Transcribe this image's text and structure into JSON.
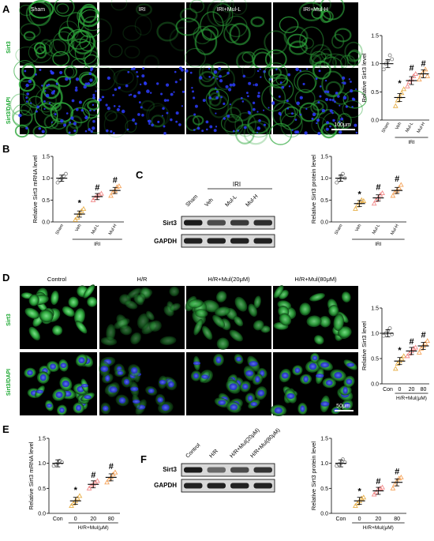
{
  "panel_letters": [
    "A",
    "B",
    "C",
    "D",
    "E",
    "F"
  ],
  "panel_a": {
    "col_titles": [
      "Sham",
      "IRI",
      "IRI+Mul-L",
      "IRI+Mul-H"
    ],
    "row_labels": [
      "Sirt3",
      "Sirt3/DAPI"
    ],
    "scale_bar": "100μm"
  },
  "panel_c": {
    "group_label": "IRI",
    "lanes": [
      "Sham",
      "Veh",
      "Mul-L",
      "Mul-H"
    ],
    "bands": [
      "Sirt3",
      "GAPDH"
    ]
  },
  "panel_d": {
    "col_titles": [
      "Control",
      "H/R",
      "H/R+Mul(20μM)",
      "H/R+Mul(80μM)"
    ],
    "row_labels": [
      "Sirt3",
      "Sirt3/DAPI"
    ],
    "scale_bar": "50μm"
  },
  "panel_f": {
    "lanes": [
      "Control",
      "H/R",
      "H/R+Mul(20μM)",
      "H/R+Mul(80μM)"
    ],
    "bands": [
      "Sirt3",
      "GAPDH"
    ]
  },
  "colors": {
    "sham": "#888888",
    "veh": "#e8b04a",
    "mul_l": "#f28a8a",
    "mul_h": "#f5a35a",
    "green": "#33b54a",
    "blue": "#2d3cff"
  },
  "chart_data": [
    {
      "panel": "A",
      "type": "scatter",
      "ylabel": "Relative Sirt3 level",
      "categories": [
        "Sham",
        "Veh",
        "Mul-L",
        "Mul-H"
      ],
      "group": "IRI",
      "ylim": [
        0,
        1.5
      ],
      "yticks": [
        "0.0",
        "0.5",
        "1.0",
        "1.5"
      ],
      "means": [
        1.0,
        0.4,
        0.7,
        0.82
      ],
      "markers": [
        "",
        "*",
        "#",
        "#"
      ],
      "points": [
        [
          0.9,
          1.0,
          1.05,
          1.15,
          1.08
        ],
        [
          0.25,
          0.35,
          0.42,
          0.48,
          0.55
        ],
        [
          0.6,
          0.68,
          0.72,
          0.78,
          0.82
        ],
        [
          0.72,
          0.8,
          0.85,
          0.9,
          0.78
        ]
      ]
    },
    {
      "panel": "B",
      "type": "scatter",
      "ylabel": "Relative Sirt3 mRNA level",
      "categories": [
        "Sham",
        "Veh",
        "Mul-L",
        "Mul-H"
      ],
      "group": "IRI",
      "ylim": [
        0,
        1.5
      ],
      "yticks": [
        "0.0",
        "0.5",
        "1.0",
        "1.5"
      ],
      "means": [
        1.0,
        0.18,
        0.58,
        0.72
      ],
      "markers": [
        "",
        "*",
        "#",
        "#"
      ],
      "points": [
        [
          0.9,
          0.95,
          1.0,
          1.05,
          1.1
        ],
        [
          0.05,
          0.1,
          0.2,
          0.25,
          0.3
        ],
        [
          0.5,
          0.55,
          0.6,
          0.62,
          0.65
        ],
        [
          0.6,
          0.68,
          0.72,
          0.8,
          0.82
        ]
      ]
    },
    {
      "panel": "C",
      "type": "scatter",
      "ylabel": "Relative Sirt3 protein level",
      "categories": [
        "Sham",
        "Veh",
        "Mul-L",
        "Mul-H"
      ],
      "group": "IRI",
      "ylim": [
        0,
        1.5
      ],
      "yticks": [
        "0.0",
        "0.5",
        "1.0",
        "1.5"
      ],
      "means": [
        1.0,
        0.42,
        0.55,
        0.72
      ],
      "markers": [
        "",
        "*",
        "#",
        "#"
      ],
      "points": [
        [
          0.9,
          0.95,
          1.05,
          1.1,
          1.0
        ],
        [
          0.3,
          0.38,
          0.45,
          0.5,
          0.48
        ],
        [
          0.42,
          0.5,
          0.55,
          0.62,
          0.66
        ],
        [
          0.6,
          0.68,
          0.72,
          0.78,
          0.85
        ]
      ]
    },
    {
      "panel": "D",
      "type": "scatter",
      "ylabel": "Relative Sirt3 level",
      "categories": [
        "Con",
        "0",
        "20",
        "80"
      ],
      "group": "H/R+Mul(μM)",
      "ylim": [
        0,
        1.5
      ],
      "yticks": [
        "0.0",
        "0.5",
        "1.0",
        "1.5"
      ],
      "means": [
        1.0,
        0.45,
        0.65,
        0.75
      ],
      "markers": [
        "",
        "*",
        "#",
        "#"
      ],
      "points": [
        [
          0.95,
          1.0,
          1.05,
          1.1,
          0.98
        ],
        [
          0.3,
          0.4,
          0.45,
          0.5,
          0.55
        ],
        [
          0.55,
          0.6,
          0.65,
          0.7,
          0.72
        ],
        [
          0.62,
          0.7,
          0.75,
          0.8,
          0.85
        ]
      ]
    },
    {
      "panel": "E",
      "type": "scatter",
      "ylabel": "Relative Sirt3 mRNA level",
      "categories": [
        "Con",
        "0",
        "20",
        "80"
      ],
      "group": "H/R+Mul(μM)",
      "ylim": [
        0,
        1.5
      ],
      "yticks": [
        "0.0",
        "0.5",
        "1.0",
        "1.5"
      ],
      "means": [
        1.0,
        0.25,
        0.58,
        0.72
      ],
      "markers": [
        "",
        "*",
        "#",
        "#"
      ],
      "points": [
        [
          0.95,
          0.98,
          1.0,
          1.05,
          1.02
        ],
        [
          0.15,
          0.2,
          0.25,
          0.3,
          0.35
        ],
        [
          0.5,
          0.55,
          0.58,
          0.62,
          0.65
        ],
        [
          0.62,
          0.68,
          0.72,
          0.78,
          0.82
        ]
      ]
    },
    {
      "panel": "F",
      "type": "scatter",
      "ylabel": "Relative Sirt3 protein level",
      "categories": [
        "Con",
        "0",
        "20",
        "80"
      ],
      "group": "H/R+Mul(μM)",
      "ylim": [
        0,
        1.5
      ],
      "yticks": [
        "0.0",
        "0.5",
        "1.0",
        "1.5"
      ],
      "means": [
        1.0,
        0.25,
        0.45,
        0.62
      ],
      "markers": [
        "",
        "*",
        "#",
        "#"
      ],
      "points": [
        [
          0.95,
          0.98,
          1.0,
          1.08,
          1.02
        ],
        [
          0.15,
          0.2,
          0.25,
          0.3,
          0.32
        ],
        [
          0.38,
          0.42,
          0.48,
          0.5,
          0.52
        ],
        [
          0.5,
          0.58,
          0.65,
          0.7,
          0.72
        ]
      ]
    }
  ]
}
